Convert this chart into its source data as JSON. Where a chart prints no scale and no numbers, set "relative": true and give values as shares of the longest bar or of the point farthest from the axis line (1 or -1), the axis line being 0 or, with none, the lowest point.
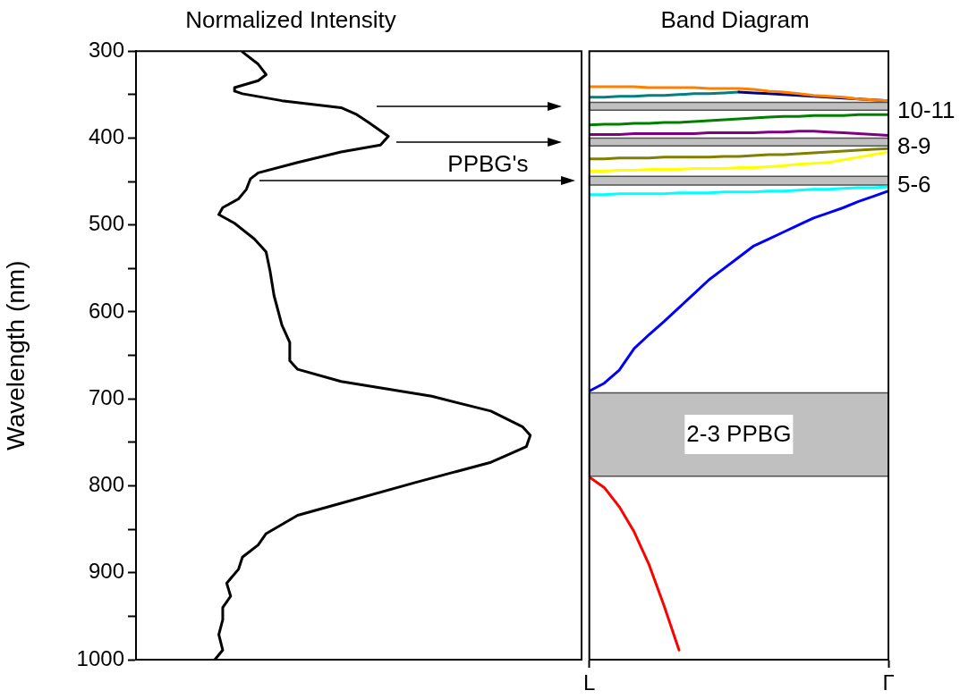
{
  "chart_data": [
    {
      "type": "line",
      "title": "Normalized Intensity",
      "ylabel": "Wavelength (nm)",
      "orientation": "horizontal",
      "relative": true,
      "marker": "none",
      "ylim": [
        1000,
        300
      ],
      "yticks": [
        300,
        {
          "value": 350,
          "label": null
        },
        400,
        {
          "value": 450,
          "label": null
        },
        500,
        {
          "value": 550,
          "label": null
        },
        600,
        {
          "value": 650,
          "label": null
        },
        700,
        {
          "value": 750,
          "label": null
        },
        800,
        {
          "value": 850,
          "label": null
        },
        900,
        {
          "value": 950,
          "label": null
        },
        1000
      ],
      "x": [
        301,
        315,
        327,
        334,
        342,
        346,
        349,
        357,
        365,
        373,
        382,
        398,
        408,
        416,
        428,
        440,
        447,
        459,
        470,
        480,
        488,
        498,
        516,
        531,
        553,
        581,
        615,
        635,
        656,
        666,
        680,
        697,
        714,
        732,
        742,
        755,
        773,
        796,
        820,
        834,
        855,
        868,
        882,
        896,
        912,
        927,
        940,
        954,
        971,
        989,
        1000
      ],
      "series": [
        {
          "color": "#000000",
          "values": [
            0.27,
            0.31,
            0.33,
            0.31,
            0.25,
            0.25,
            0.27,
            0.37,
            0.52,
            0.56,
            0.59,
            0.64,
            0.62,
            0.52,
            0.41,
            0.31,
            0.29,
            0.28,
            0.26,
            0.22,
            0.21,
            0.25,
            0.3,
            0.33,
            0.34,
            0.35,
            0.37,
            0.39,
            0.39,
            0.41,
            0.52,
            0.75,
            0.9,
            0.98,
            1,
            0.99,
            0.9,
            0.71,
            0.52,
            0.41,
            0.33,
            0.31,
            0.27,
            0.26,
            0.23,
            0.24,
            0.22,
            0.22,
            0.21,
            0.22,
            0.2
          ]
        }
      ],
      "annotations": [
        "PPBG's"
      ]
    },
    {
      "type": "line",
      "title": "Band Diagram",
      "marker": "none",
      "tick_labels": "x",
      "ylim": [
        1000,
        300
      ],
      "categories": [
        "L",
        null,
        null,
        null,
        null,
        null,
        null,
        null,
        null,
        null,
        null,
        null,
        null,
        null,
        null,
        null,
        null,
        null,
        null,
        null,
        "Γ"
      ],
      "series": [
        {
          "color": "#ff0000",
          "values": [
            790,
            802,
            824,
            853,
            891,
            938,
            989,
            null,
            null,
            null,
            null,
            null,
            null,
            null,
            null,
            null,
            null,
            null,
            null,
            null,
            null
          ]
        },
        {
          "color": "#0000ff",
          "values": [
            691,
            682,
            667,
            642,
            626,
            611,
            595,
            579,
            563,
            550,
            537,
            524,
            516,
            508,
            500,
            492,
            486,
            480,
            473,
            467,
            461
          ]
        },
        {
          "color": "#00ffff",
          "values": [
            465,
            465,
            464,
            464,
            464,
            464,
            463,
            463,
            463,
            462,
            462,
            462,
            461,
            461,
            460,
            459,
            459,
            458,
            457,
            457,
            456
          ]
        },
        {
          "color": "#ffff00",
          "values": [
            438,
            438,
            437,
            437,
            436,
            436,
            436,
            435,
            435,
            435,
            434,
            434,
            433,
            432,
            430,
            429,
            428,
            425,
            422,
            419,
            416
          ]
        },
        {
          "color": "#808000",
          "values": [
            424,
            424,
            423,
            423,
            423,
            422,
            422,
            422,
            422,
            421,
            421,
            420,
            419,
            419,
            418,
            417,
            416,
            415,
            414,
            413,
            412
          ]
        },
        {
          "color": "#800080",
          "values": [
            396,
            396,
            396,
            395,
            395,
            395,
            395,
            395,
            394,
            394,
            394,
            394,
            393,
            393,
            392,
            392,
            393,
            394,
            395,
            396,
            397
          ]
        },
        {
          "color": "#008000",
          "values": [
            385,
            384,
            384,
            383,
            383,
            382,
            382,
            381,
            380,
            379,
            378,
            377,
            376,
            375,
            375,
            374,
            374,
            374,
            373,
            373,
            373
          ]
        },
        {
          "color": "#008080",
          "values": [
            353,
            353,
            352,
            352,
            351,
            351,
            350,
            349,
            349,
            348,
            347,
            null,
            null,
            null,
            null,
            null,
            null,
            null,
            null,
            null,
            null
          ]
        },
        {
          "color": "#000080",
          "values": [
            null,
            null,
            null,
            null,
            null,
            null,
            null,
            null,
            null,
            null,
            347,
            348,
            349,
            350,
            351,
            352,
            353,
            354,
            355,
            356,
            357
          ]
        },
        {
          "color": "#ff8000",
          "values": [
            341,
            341,
            341,
            341,
            342,
            342,
            342,
            342,
            343,
            343,
            343,
            344,
            346,
            347,
            349,
            351,
            352,
            353,
            355,
            356,
            357
          ]
        }
      ],
      "bands": [
        {
          "axis": "y",
          "from": 359,
          "to": 368,
          "label": "10-11",
          "color": "#c0c0c0"
        },
        {
          "axis": "y",
          "from": 400,
          "to": 409,
          "label": "8-9",
          "color": "#c0c0c0"
        },
        {
          "axis": "y",
          "from": 444,
          "to": 454,
          "label": "5-6",
          "color": "#c0c0c0"
        },
        {
          "axis": "y",
          "from": 693,
          "to": 789,
          "label": "2-3 PPBG",
          "color": "#c0c0c0"
        }
      ]
    }
  ]
}
